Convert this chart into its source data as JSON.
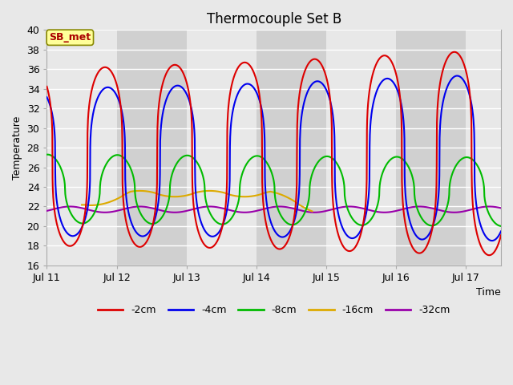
{
  "title": "Thermocouple Set B",
  "xlabel": "Time",
  "ylabel": "Temperature",
  "ylim": [
    16,
    40
  ],
  "yticks": [
    16,
    18,
    20,
    22,
    24,
    26,
    28,
    30,
    32,
    34,
    36,
    38,
    40
  ],
  "bg_light": "#e8e8e8",
  "bg_dark": "#d0d0d0",
  "grid_color": "#ffffff",
  "annotation_text": "SB_met",
  "annotation_bg": "#ffff99",
  "annotation_border": "#888800",
  "annotation_fg": "#aa0000",
  "series": {
    "-2cm": {
      "color": "#dd0000",
      "lw": 1.5
    },
    "-4cm": {
      "color": "#0000ee",
      "lw": 1.5
    },
    "-8cm": {
      "color": "#00bb00",
      "lw": 1.5
    },
    "-16cm": {
      "color": "#ddaa00",
      "lw": 1.5
    },
    "-32cm": {
      "color": "#9900aa",
      "lw": 1.5
    }
  },
  "n_points": 2000
}
